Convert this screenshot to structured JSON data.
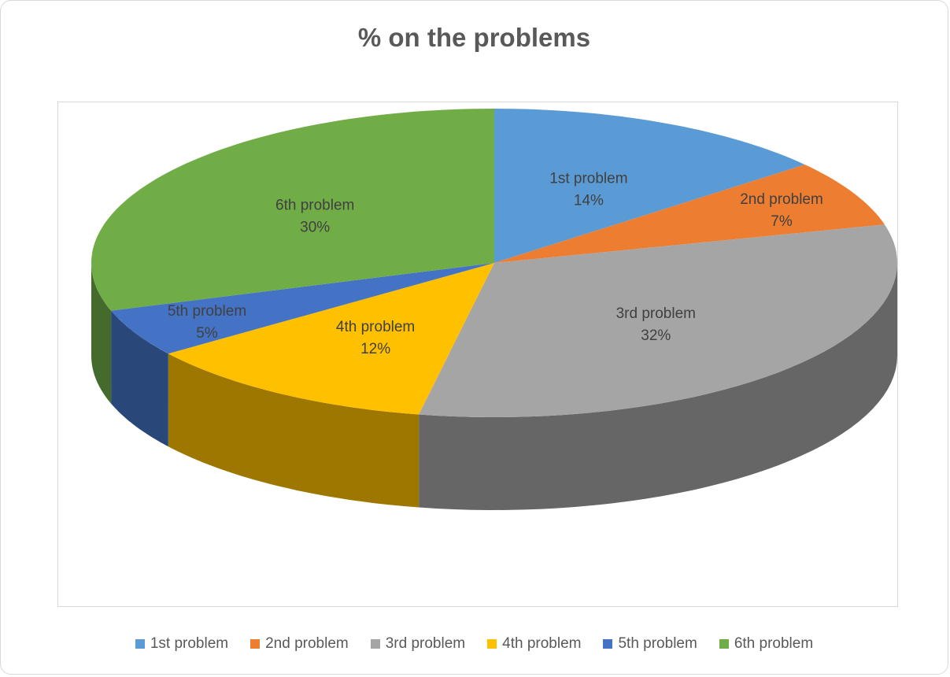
{
  "chart_data": {
    "type": "pie",
    "style": "3d",
    "title": "% on the problems",
    "legend_position": "bottom",
    "slices": [
      {
        "label": "1st problem",
        "percent_label": "14%",
        "value": 14,
        "color": "#5b9bd5"
      },
      {
        "label": "2nd problem",
        "percent_label": "7%",
        "value": 7,
        "color": "#ed7d31"
      },
      {
        "label": "3rd problem",
        "percent_label": "32%",
        "value": 32,
        "color": "#a5a5a5"
      },
      {
        "label": "4th problem",
        "percent_label": "12%",
        "value": 12,
        "color": "#ffc000"
      },
      {
        "label": "5th problem",
        "percent_label": "5%",
        "value": 5,
        "color": "#4472c4"
      },
      {
        "label": "6th problem",
        "percent_label": "30%",
        "value": 30,
        "color": "#70ad47"
      }
    ]
  }
}
